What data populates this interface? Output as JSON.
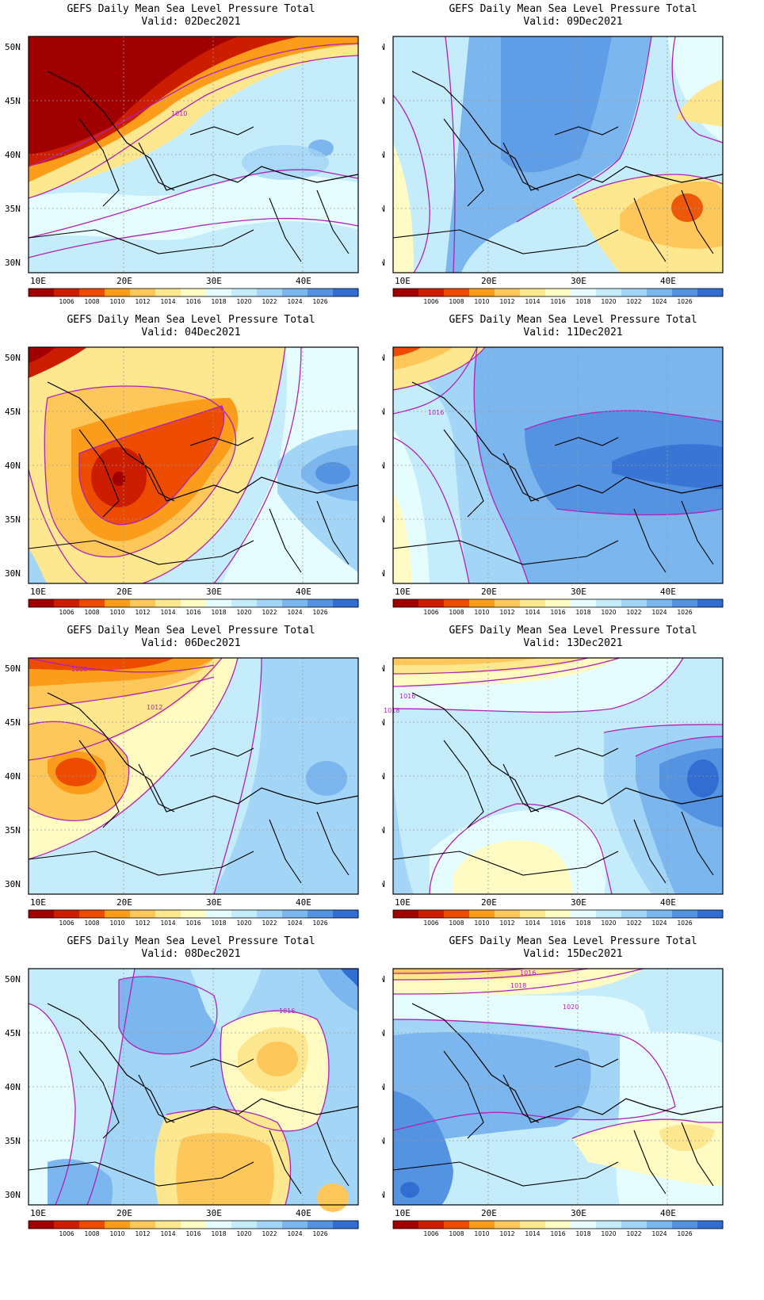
{
  "colorbar": {
    "colors": [
      "#a00000",
      "#cd1d00",
      "#ec4b00",
      "#fb9d1a",
      "#fdc75a",
      "#fde78f",
      "#fffbc3",
      "#e6fdff",
      "#c5ecfb",
      "#a3d5f6",
      "#7cb6ee",
      "#5393e2",
      "#326ed2"
    ],
    "labels": [
      "1006",
      "1008",
      "1010",
      "1012",
      "1014",
      "1016",
      "1018",
      "1020",
      "1022",
      "1024",
      "1026"
    ]
  },
  "axes": {
    "lon_ticks": [
      "10E",
      "20E",
      "30E",
      "40E"
    ],
    "lat_ticks": [
      "50N",
      "45N",
      "40N",
      "35N",
      "30N"
    ]
  },
  "panels": [
    {
      "id": "p1",
      "title": "GEFS Daily Mean Sea Level Pressure Total",
      "valid": "Valid: 02Dec2021",
      "contour_labels": [
        "1010"
      ]
    },
    {
      "id": "p2",
      "title": "GEFS Daily Mean Sea Level Pressure Total",
      "valid": "Valid: 09Dec2021",
      "contour_labels": []
    },
    {
      "id": "p3",
      "title": "GEFS Daily Mean Sea Level Pressure Total",
      "valid": "Valid: 04Dec2021",
      "contour_labels": []
    },
    {
      "id": "p4",
      "title": "GEFS Daily Mean Sea Level Pressure Total",
      "valid": "Valid: 11Dec2021",
      "contour_labels": [
        "1016"
      ]
    },
    {
      "id": "p5",
      "title": "GEFS Daily Mean Sea Level Pressure Total",
      "valid": "Valid: 06Dec2021",
      "contour_labels": [
        "1008",
        "1012"
      ]
    },
    {
      "id": "p6",
      "title": "GEFS Daily Mean Sea Level Pressure Total",
      "valid": "Valid: 13Dec2021",
      "contour_labels": [
        "1016",
        "1018"
      ]
    },
    {
      "id": "p7",
      "title": "GEFS Daily Mean Sea Level Pressure Total",
      "valid": "Valid: 08Dec2021",
      "contour_labels": [
        "1016"
      ]
    },
    {
      "id": "p8",
      "title": "GEFS Daily Mean Sea Level Pressure Total",
      "valid": "Valid: 15Dec2021",
      "contour_labels": [
        "1016",
        "1018",
        "1020"
      ]
    }
  ]
}
